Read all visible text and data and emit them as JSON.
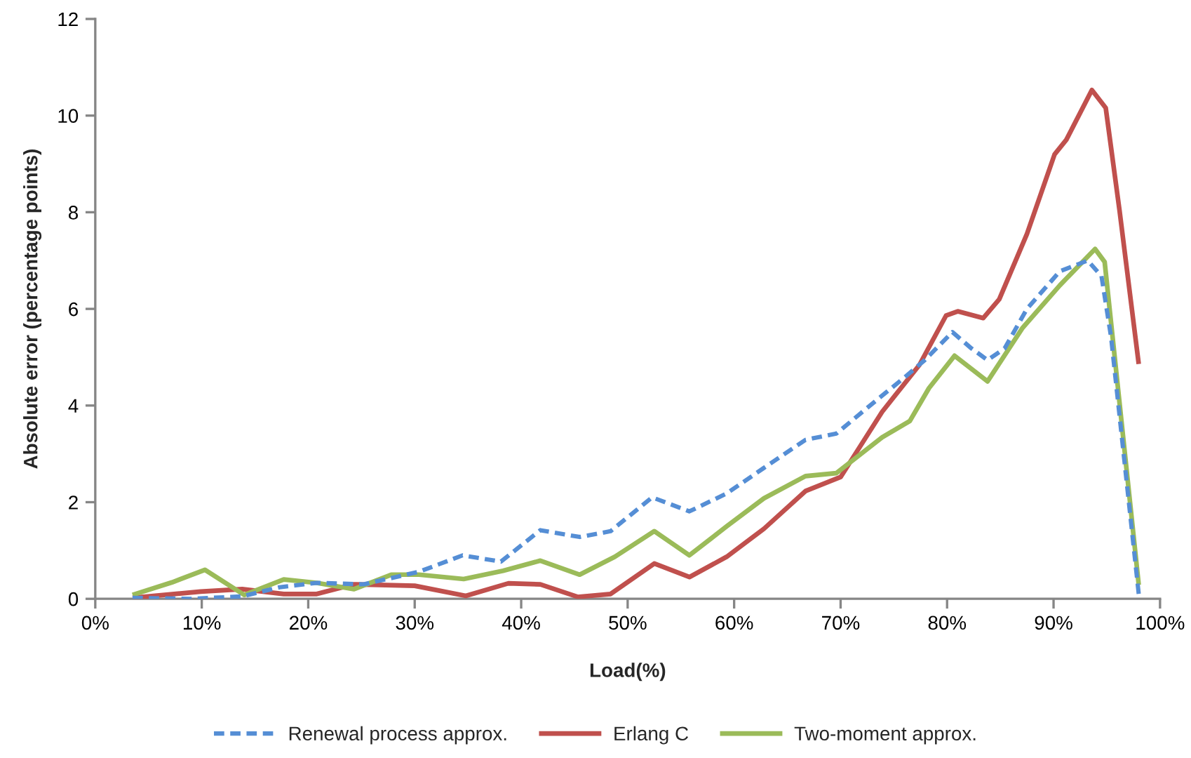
{
  "chart_data": {
    "type": "line",
    "xlabel": "Load(%)",
    "ylabel": "Absolute error (percentage points)",
    "xlim": [
      0,
      100
    ],
    "xticks": [
      {
        "value": 0,
        "label": "0%"
      },
      {
        "value": 10,
        "label": "10%"
      },
      {
        "value": 20,
        "label": "20%"
      },
      {
        "value": 30,
        "label": "30%"
      },
      {
        "value": 40,
        "label": "40%"
      },
      {
        "value": 50,
        "label": "50%"
      },
      {
        "value": 60,
        "label": "60%"
      },
      {
        "value": 70,
        "label": "70%"
      },
      {
        "value": 80,
        "label": "80%"
      },
      {
        "value": 90,
        "label": "90%"
      },
      {
        "value": 100,
        "label": "100%"
      }
    ],
    "ylim": [
      0,
      12
    ],
    "yticks": [
      0,
      2,
      4,
      6,
      8,
      10,
      12
    ],
    "legend": "bottom",
    "series": [
      {
        "name": "Renewal process approx.",
        "color": "#558ed5",
        "line_style": "dashed",
        "x": [
          3.5,
          9,
          13.8,
          17.3,
          20.8,
          25.2,
          30.4,
          34.5,
          38.1,
          41.8,
          45.5,
          48.4,
          52.3,
          55.8,
          59.3,
          62.8,
          66.7,
          69.6,
          72.6,
          76.1,
          77.9,
          80.5,
          82.3,
          83.8,
          85.4,
          87.5,
          90.6,
          93.2,
          94.5,
          95.4,
          98
        ],
        "values": [
          0.02,
          0.0,
          0.05,
          0.24,
          0.33,
          0.3,
          0.56,
          0.9,
          0.77,
          1.42,
          1.28,
          1.4,
          2.1,
          1.81,
          2.18,
          2.71,
          3.29,
          3.42,
          3.97,
          4.6,
          4.94,
          5.52,
          5.18,
          4.94,
          5.18,
          6.0,
          6.78,
          7.0,
          6.68,
          5.42,
          0.1
        ]
      },
      {
        "name": "Erlang C",
        "color": "#c0504d",
        "line_style": "solid",
        "x": [
          3.5,
          9.9,
          13.8,
          17.7,
          20.8,
          24.3,
          30,
          34.8,
          38.8,
          41.8,
          45.3,
          48.4,
          52.5,
          55.8,
          59.3,
          62.8,
          66.7,
          70,
          73.9,
          77.4,
          79.9,
          81,
          83.4,
          84.9,
          87.5,
          90.1,
          91.2,
          93.6,
          94.9,
          96.2,
          98
        ],
        "values": [
          0.02,
          0.15,
          0.2,
          0.1,
          0.1,
          0.3,
          0.27,
          0.06,
          0.32,
          0.3,
          0.04,
          0.1,
          0.73,
          0.45,
          0.87,
          1.45,
          2.23,
          2.52,
          3.87,
          4.84,
          5.86,
          5.95,
          5.81,
          6.2,
          7.55,
          9.2,
          9.5,
          10.53,
          10.16,
          8.03,
          4.86
        ]
      },
      {
        "name": "Two-moment approx.",
        "color": "#9bbb59",
        "line_style": "solid",
        "x": [
          3.5,
          7.2,
          10.3,
          14,
          17.7,
          20.8,
          24.3,
          27.8,
          30.4,
          34.6,
          38.3,
          41.8,
          45.5,
          48.8,
          52.5,
          55.8,
          59.3,
          62.8,
          66.7,
          69.6,
          73.9,
          76.5,
          78.3,
          80.7,
          83.8,
          87.1,
          90.6,
          93.9,
          94.8,
          98
        ],
        "values": [
          0.08,
          0.34,
          0.6,
          0.08,
          0.4,
          0.33,
          0.2,
          0.5,
          0.5,
          0.41,
          0.58,
          0.79,
          0.5,
          0.87,
          1.4,
          0.9,
          1.5,
          2.08,
          2.54,
          2.6,
          3.34,
          3.68,
          4.36,
          5.03,
          4.5,
          5.61,
          6.49,
          7.24,
          6.97,
          0.29
        ]
      }
    ]
  }
}
